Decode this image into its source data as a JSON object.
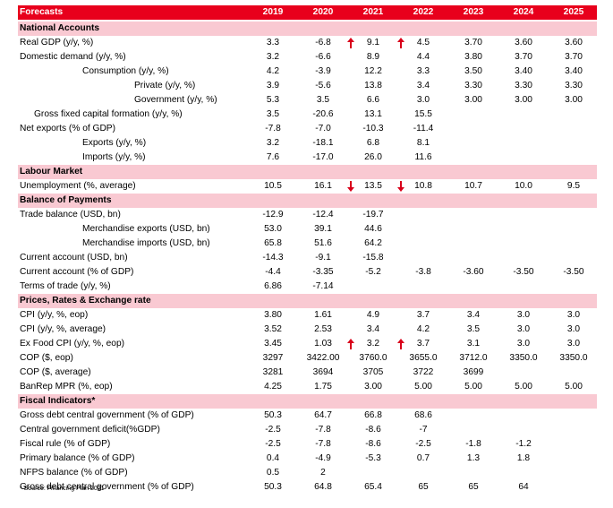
{
  "header": {
    "title": "Forecasts",
    "years": [
      "2019",
      "2020",
      "2021",
      "2022",
      "2023",
      "2024",
      "2025"
    ]
  },
  "rows": [
    {
      "type": "section",
      "label": "National Accounts"
    },
    {
      "label": "Real GDP (y/y, %)",
      "indent": 0,
      "values": [
        "3.3",
        "-6.8",
        "9.1",
        "4.5",
        "3.70",
        "3.60",
        "3.60"
      ]
    },
    {
      "label": "Domestic demand (y/y, %)",
      "indent": 0,
      "values": [
        "3.2",
        "-6.6",
        "8.9",
        "4.4",
        "3.80",
        "3.70",
        "3.70"
      ]
    },
    {
      "label": "Consumption (y/y, %)",
      "indent": 2,
      "values": [
        "4.2",
        "-3.9",
        "12.2",
        "3.3",
        "3.50",
        "3.40",
        "3.40"
      ]
    },
    {
      "label": "Private (y/y, %)",
      "indent": 3,
      "values": [
        "3.9",
        "-5.6",
        "13.8",
        "3.4",
        "3.30",
        "3.30",
        "3.30"
      ]
    },
    {
      "label": "Government (y/y, %)",
      "indent": 3,
      "values": [
        "5.3",
        "3.5",
        "6.6",
        "3.0",
        "3.00",
        "3.00",
        "3.00"
      ]
    },
    {
      "label": "Gross fixed capital formation (y/y, %)",
      "indent": 1,
      "values": [
        "3.5",
        "-20.6",
        "13.1",
        "15.5",
        "",
        "",
        ""
      ]
    },
    {
      "label": "Net exports   (% of GDP)",
      "indent": 0,
      "values": [
        "-7.8",
        "-7.0",
        "-10.3",
        "-11.4",
        "",
        "",
        ""
      ]
    },
    {
      "label": "Exports (y/y, %)",
      "indent": 2,
      "values": [
        "3.2",
        "-18.1",
        "6.8",
        "8.1",
        "",
        "",
        ""
      ]
    },
    {
      "label": "Imports (y/y, %)",
      "indent": 2,
      "values": [
        "7.6",
        "-17.0",
        "26.0",
        "11.6",
        "",
        "",
        ""
      ]
    },
    {
      "type": "section",
      "label": "Labour Market"
    },
    {
      "label": "Unemployment (%, average)",
      "indent": 0,
      "values": [
        "10.5",
        "16.1",
        "13.5",
        "10.8",
        "10.7",
        "10.0",
        "9.5"
      ]
    },
    {
      "type": "section",
      "label": "Balance of Payments"
    },
    {
      "label": "Trade balance (USD, bn)",
      "indent": 0,
      "values": [
        "-12.9",
        "-12.4",
        "-19.7",
        "",
        "",
        "",
        ""
      ]
    },
    {
      "label": "Merchandise exports (USD, bn)",
      "indent": 2,
      "values": [
        "53.0",
        "39.1",
        "44.6",
        "",
        "",
        "",
        ""
      ]
    },
    {
      "label": "Merchandise imports (USD, bn)",
      "indent": 2,
      "values": [
        "65.8",
        "51.6",
        "64.2",
        "",
        "",
        "",
        ""
      ]
    },
    {
      "label": "Current account (USD, bn)",
      "indent": 0,
      "values": [
        "-14.3",
        "-9.1",
        "-15.8",
        "",
        "",
        "",
        ""
      ]
    },
    {
      "label": "Current account (% of GDP)",
      "indent": 0,
      "values": [
        "-4.4",
        "-3.35",
        "-5.2",
        "-3.8",
        "-3.60",
        "-3.50",
        "-3.50"
      ]
    },
    {
      "label": "Terms of trade (y/y, %)",
      "indent": 0,
      "values": [
        "6.86",
        "-7.14",
        "",
        "",
        "",
        "",
        ""
      ]
    },
    {
      "type": "section",
      "label": "Prices, Rates & Exchange rate"
    },
    {
      "label": "CPI (y/y, %, eop)",
      "indent": 0,
      "values": [
        "3.80",
        "1.61",
        "4.9",
        "3.7",
        "3.4",
        "3.0",
        "3.0"
      ]
    },
    {
      "label": "CPI (y/y, %, average)",
      "indent": 0,
      "values": [
        "3.52",
        "2.53",
        "3.4",
        "4.2",
        "3.5",
        "3.0",
        "3.0"
      ]
    },
    {
      "label": "Ex Food CPI (y/y, %, eop)",
      "indent": 0,
      "values": [
        "3.45",
        "1.03",
        "3.2",
        "3.7",
        "3.1",
        "3.0",
        "3.0"
      ]
    },
    {
      "label": "COP ($, eop)",
      "indent": 0,
      "values": [
        "3297",
        "3422.00",
        "3760.0",
        "3655.0",
        "3712.0",
        "3350.0",
        "3350.0"
      ]
    },
    {
      "label": "COP ($, average)",
      "indent": 0,
      "values": [
        "3281",
        "3694",
        "3705",
        "3722",
        "3699",
        "",
        ""
      ]
    },
    {
      "label": "BanRep MPR (%, eop)",
      "indent": 0,
      "values": [
        "4.25",
        "1.75",
        "3.00",
        "5.00",
        "5.00",
        "5.00",
        "5.00"
      ]
    },
    {
      "type": "section",
      "label": "Fiscal Indicators*"
    },
    {
      "label": "Gross debt central government (% of GDP)",
      "indent": 0,
      "values": [
        "50.3",
        "64.7",
        "66.8",
        "68.6",
        "",
        "",
        ""
      ]
    },
    {
      "label": "Central government deficit(%GDP)",
      "indent": 0,
      "values": [
        "-2.5",
        "-7.8",
        "-8.6",
        "-7",
        "",
        "",
        ""
      ]
    },
    {
      "label": "Fiscal rule  (% of GDP)",
      "indent": 0,
      "values": [
        "-2.5",
        "-7.8",
        "-8.6",
        "-2.5",
        "-1.8",
        "-1.2",
        ""
      ]
    },
    {
      "label": "Primary balance (% of GDP)",
      "indent": 0,
      "values": [
        "0.4",
        "-4.9",
        "-5.3",
        "0.7",
        "1.3",
        "1.8",
        ""
      ]
    },
    {
      "label": "NFPS balance (% of GDP)",
      "indent": 0,
      "values": [
        "0.5",
        "2",
        "",
        "",
        "",
        "",
        ""
      ]
    },
    {
      "label": "Gross debt central government (% of GDP)",
      "indent": 0,
      "values": [
        "50.3",
        "64.8",
        "65.4",
        "65",
        "65",
        "64",
        ""
      ]
    }
  ],
  "arrows": [
    {
      "row": 1,
      "col": 2,
      "dir": "up"
    },
    {
      "row": 1,
      "col": 3,
      "dir": "up"
    },
    {
      "row": 11,
      "col": 2,
      "dir": "down"
    },
    {
      "row": 11,
      "col": 3,
      "dir": "down"
    },
    {
      "row": 22,
      "col": 2,
      "dir": "up"
    },
    {
      "row": 22,
      "col": 3,
      "dir": "up"
    }
  ],
  "footnote": "* Source: Financing Plan 2021",
  "colors": {
    "header_bg": "#e8001c",
    "section_bg": "#f9c9d2",
    "arrow": "#d9001a"
  }
}
